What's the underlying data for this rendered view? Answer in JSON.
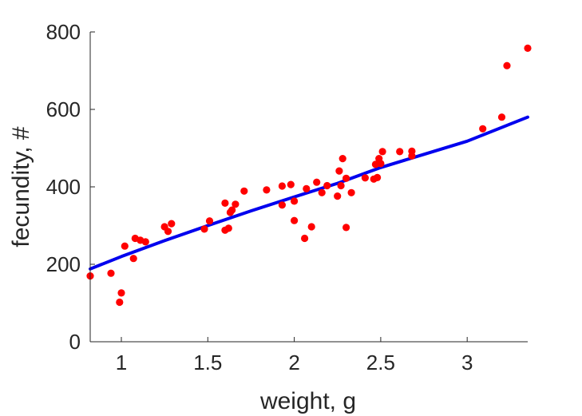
{
  "chart_data": {
    "type": "scatter",
    "title": "",
    "xlabel": "weight, g",
    "ylabel": "fecundity, #",
    "xlim": [
      0.82,
      3.35
    ],
    "ylim": [
      0,
      800
    ],
    "xticks": [
      1,
      1.5,
      2,
      2.5,
      3
    ],
    "yticks": [
      0,
      200,
      400,
      600,
      800
    ],
    "xtick_labels": [
      "1",
      "1.5",
      "2",
      "2.5",
      "3"
    ],
    "ytick_labels": [
      "0",
      "200",
      "400",
      "600",
      "800"
    ],
    "grid": false,
    "legend": "none",
    "series": [
      {
        "kind": "scatter",
        "color": "#ff0000",
        "points": [
          [
            0.82,
            170
          ],
          [
            0.94,
            177
          ],
          [
            0.99,
            102
          ],
          [
            1.0,
            126
          ],
          [
            1.02,
            247
          ],
          [
            1.07,
            215
          ],
          [
            1.08,
            267
          ],
          [
            1.11,
            262
          ],
          [
            1.14,
            258
          ],
          [
            1.25,
            297
          ],
          [
            1.27,
            285
          ],
          [
            1.29,
            305
          ],
          [
            1.48,
            291
          ],
          [
            1.51,
            312
          ],
          [
            1.6,
            358
          ],
          [
            1.6,
            288
          ],
          [
            1.62,
            293
          ],
          [
            1.63,
            334
          ],
          [
            1.64,
            340
          ],
          [
            1.66,
            355
          ],
          [
            1.71,
            389
          ],
          [
            1.84,
            392
          ],
          [
            1.93,
            402
          ],
          [
            1.93,
            353
          ],
          [
            1.98,
            406
          ],
          [
            2.0,
            363
          ],
          [
            2.0,
            313
          ],
          [
            2.06,
            267
          ],
          [
            2.07,
            395
          ],
          [
            2.1,
            297
          ],
          [
            2.13,
            412
          ],
          [
            2.16,
            385
          ],
          [
            2.19,
            403
          ],
          [
            2.25,
            376
          ],
          [
            2.26,
            441
          ],
          [
            2.27,
            403
          ],
          [
            2.28,
            473
          ],
          [
            2.3,
            422
          ],
          [
            2.3,
            295
          ],
          [
            2.33,
            385
          ],
          [
            2.41,
            423
          ],
          [
            2.46,
            420
          ],
          [
            2.47,
            458
          ],
          [
            2.48,
            424
          ],
          [
            2.49,
            473
          ],
          [
            2.5,
            460
          ],
          [
            2.51,
            491
          ],
          [
            2.61,
            491
          ],
          [
            2.68,
            480
          ],
          [
            2.68,
            492
          ],
          [
            3.09,
            550
          ],
          [
            3.2,
            580
          ],
          [
            3.23,
            713
          ],
          [
            3.35,
            758
          ]
        ]
      },
      {
        "kind": "line",
        "color": "#0000ee",
        "points": [
          [
            0.82,
            188
          ],
          [
            1.0,
            220
          ],
          [
            1.25,
            261
          ],
          [
            1.5,
            300
          ],
          [
            1.75,
            338
          ],
          [
            2.0,
            374
          ],
          [
            2.25,
            409
          ],
          [
            2.5,
            450
          ],
          [
            2.75,
            484
          ],
          [
            3.0,
            518
          ],
          [
            3.35,
            580
          ]
        ]
      }
    ]
  }
}
